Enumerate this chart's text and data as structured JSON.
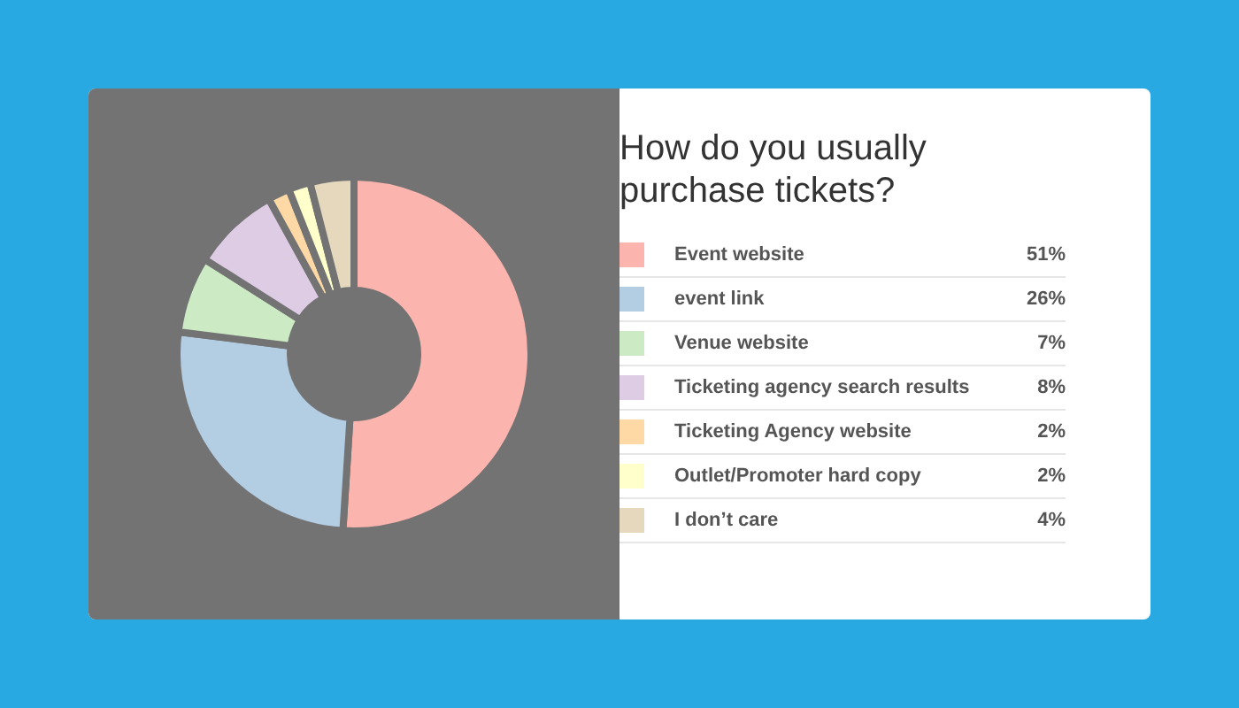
{
  "chart_data": {
    "type": "donut",
    "title": "How do you usually purchase tickets?",
    "categories": [
      "Event website",
      "event link",
      "Venue website",
      "Ticketing agency search results",
      "Ticketing Agency website",
      "Outlet/Promoter hard copy",
      "I don’t care"
    ],
    "values": [
      51,
      26,
      7,
      8,
      2,
      2,
      4
    ],
    "value_labels": [
      "51%",
      "26%",
      "7%",
      "8%",
      "2%",
      "2%",
      "4%"
    ],
    "colors": [
      "#fbb4ae",
      "#b3cde3",
      "#ccebc5",
      "#decbe4",
      "#fed9a6",
      "#ffffcc",
      "#e5d8bd"
    ],
    "legend": "right"
  }
}
